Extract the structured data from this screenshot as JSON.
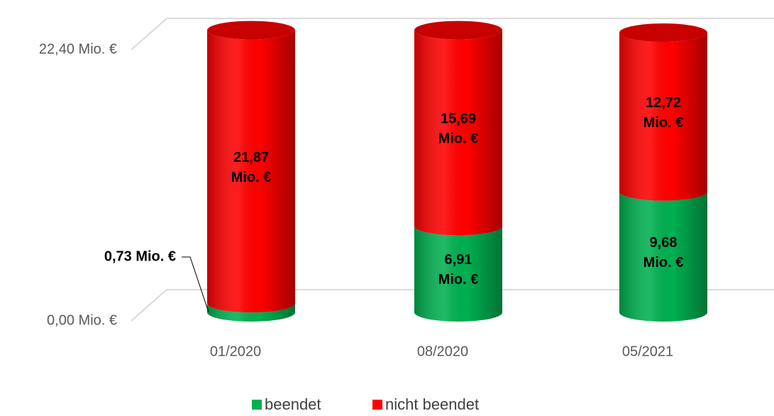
{
  "chart_data": {
    "type": "bar",
    "stacked": true,
    "categories": [
      "01/2020",
      "08/2020",
      "05/2021"
    ],
    "series": [
      {
        "name": "beendet",
        "color": "#00b050",
        "values": [
          0.73,
          6.91,
          9.68
        ],
        "value_labels": [
          "0,73 Mio. €",
          "6,91 Mio. €",
          "9,68 Mio. €"
        ]
      },
      {
        "name": "nicht beendet",
        "color": "#ff0000",
        "values": [
          21.87,
          15.69,
          12.72
        ],
        "value_labels": [
          "21,87 Mio. €",
          "15,69 Mio. €",
          "12,72 Mio. €"
        ]
      }
    ],
    "ylim": [
      0,
      22.4
    ],
    "yticks": [
      {
        "value": 0,
        "label": "0,00 Mio. €"
      },
      {
        "value": 22.4,
        "label": "22,40 Mio. €"
      }
    ],
    "grid": true,
    "legend": "bottom"
  }
}
